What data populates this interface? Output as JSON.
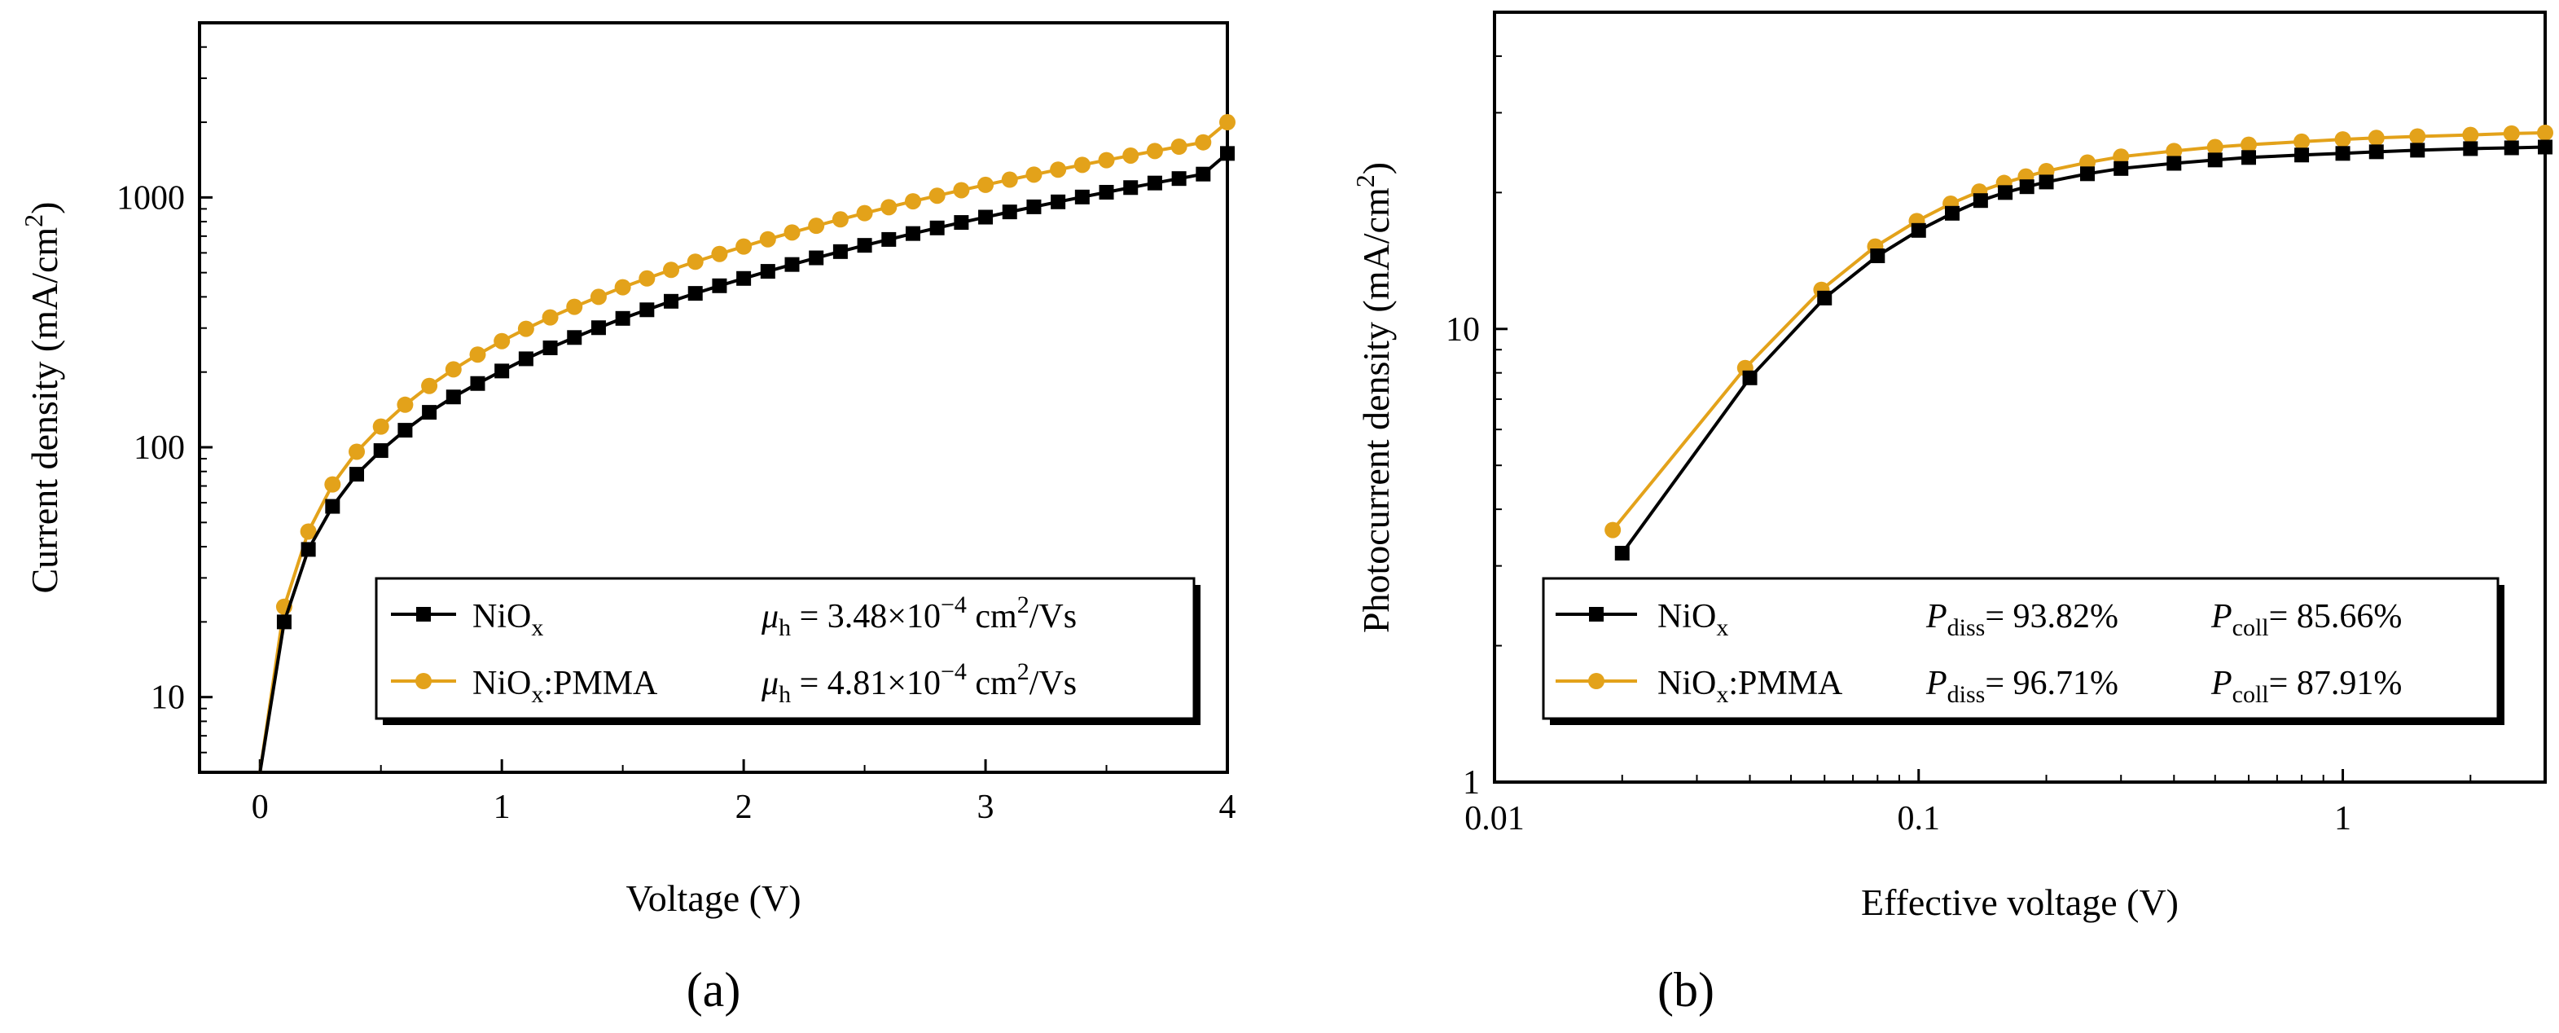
{
  "chart_data": [
    {
      "type": "line",
      "panel_label": "(a)",
      "xlabel": "Voltage (V)",
      "ylabel": "Current density (mA/cm²)",
      "xscale": "linear",
      "yscale": "log",
      "xlim": [
        -0.25,
        4.0
      ],
      "ylim": [
        5,
        5000
      ],
      "xticks": [
        0,
        1,
        2,
        3,
        4
      ],
      "xtick_labels": [
        "0",
        "1",
        "2",
        "3",
        "4"
      ],
      "yticks": [
        10,
        100,
        1000
      ],
      "ytick_labels": [
        "10",
        "100",
        "1000"
      ],
      "legend_position": "lower-right",
      "x": [
        0.0,
        0.1,
        0.2,
        0.3,
        0.4,
        0.5,
        0.6,
        0.7,
        0.8,
        0.9,
        1.0,
        1.1,
        1.2,
        1.3,
        1.4,
        1.5,
        1.6,
        1.7,
        1.8,
        1.9,
        2.0,
        2.1,
        2.2,
        2.3,
        2.4,
        2.5,
        2.6,
        2.7,
        2.8,
        2.9,
        3.0,
        3.1,
        3.2,
        3.3,
        3.4,
        3.5,
        3.6,
        3.7,
        3.8,
        3.9,
        4.0
      ],
      "series": [
        {
          "name": "NiOx",
          "sub": "x",
          "label_prefix": "NiO",
          "label_suffix": "",
          "color": "#000000",
          "marker": "square",
          "mobility": {
            "symbol": "μ",
            "sub": "h",
            "text": " = 3.48×10",
            "exp": "−4",
            "unit": " cm",
            "unit_exp": "2",
            "unit_tail": "/Vs"
          },
          "values": [
            5,
            20,
            39,
            58,
            78,
            97,
            117,
            138,
            159,
            180,
            202,
            226,
            250,
            275,
            301,
            328,
            355,
            384,
            413,
            443,
            474,
            506,
            539,
            573,
            607,
            643,
            679,
            717,
            755,
            794,
            834,
            875,
            917,
            960,
            1004,
            1049,
            1095,
            1142,
            1190,
            1240,
            1500
          ]
        },
        {
          "name": "NiOx:PMMA",
          "sub": "x",
          "label_prefix": "NiO",
          "label_suffix": ":PMMA",
          "color": "#E3A21A",
          "marker": "circle",
          "mobility": {
            "symbol": "μ",
            "sub": "h",
            "text": " = 4.81×10",
            "exp": "−4",
            "unit": " cm",
            "unit_exp": "2",
            "unit_tail": "/Vs"
          },
          "values": [
            5,
            23,
            46,
            71,
            96,
            121,
            148,
            176,
            205,
            235,
            266,
            298,
            331,
            365,
            400,
            437,
            474,
            513,
            553,
            594,
            636,
            680,
            724,
            770,
            817,
            865,
            914,
            965,
            1016,
            1069,
            1123,
            1178,
            1234,
            1292,
            1350,
            1410,
            1471,
            1534,
            1597,
            1662,
            2000
          ]
        }
      ]
    },
    {
      "type": "line",
      "panel_label": "(b)",
      "xlabel": "Effective voltage (V)",
      "ylabel": "Photocurrent density (mA/cm²)",
      "xscale": "log",
      "yscale": "log",
      "xlim": [
        0.01,
        3.0
      ],
      "ylim": [
        1,
        50
      ],
      "xticks": [
        0.01,
        0.1,
        1
      ],
      "xtick_labels": [
        "0.01",
        "0.1",
        "1"
      ],
      "yticks": [
        1,
        10
      ],
      "ytick_labels": [
        "1",
        "10"
      ],
      "legend_position": "lower-right",
      "series": [
        {
          "name": "NiOx",
          "sub": "x",
          "label_prefix": "NiO",
          "label_suffix": "",
          "color": "#000000",
          "marker": "square",
          "pdiss": "= 93.82%",
          "pcoll": "= 85.66%",
          "x": [
            0.02,
            0.04,
            0.06,
            0.08,
            0.1,
            0.12,
            0.14,
            0.16,
            0.18,
            0.2,
            0.25,
            0.3,
            0.4,
            0.5,
            0.6,
            0.8,
            1.0,
            1.2,
            1.5,
            2.0,
            2.5,
            3.0
          ],
          "values": [
            3.2,
            7.8,
            11.7,
            14.5,
            16.5,
            18.0,
            19.2,
            20.0,
            20.6,
            21.1,
            22.0,
            22.6,
            23.2,
            23.6,
            23.9,
            24.2,
            24.4,
            24.6,
            24.8,
            25.0,
            25.1,
            25.2
          ]
        },
        {
          "name": "NiOx:PMMA",
          "sub": "x",
          "label_prefix": "NiO",
          "label_suffix": ":PMMA",
          "color": "#E3A21A",
          "marker": "circle",
          "pdiss": "= 96.71%",
          "pcoll": "= 87.91%",
          "x": [
            0.019,
            0.039,
            0.059,
            0.079,
            0.099,
            0.119,
            0.139,
            0.159,
            0.179,
            0.2,
            0.25,
            0.3,
            0.4,
            0.5,
            0.6,
            0.8,
            1.0,
            1.2,
            1.5,
            2.0,
            2.5,
            3.0
          ],
          "values": [
            3.6,
            8.2,
            12.2,
            15.2,
            17.3,
            18.9,
            20.1,
            21.0,
            21.7,
            22.3,
            23.3,
            24.0,
            24.7,
            25.2,
            25.5,
            25.9,
            26.2,
            26.4,
            26.6,
            26.8,
            27.0,
            27.1
          ]
        }
      ],
      "legend_p_symbol": "P",
      "legend_diss_sub": "diss",
      "legend_coll_sub": "coll"
    }
  ]
}
